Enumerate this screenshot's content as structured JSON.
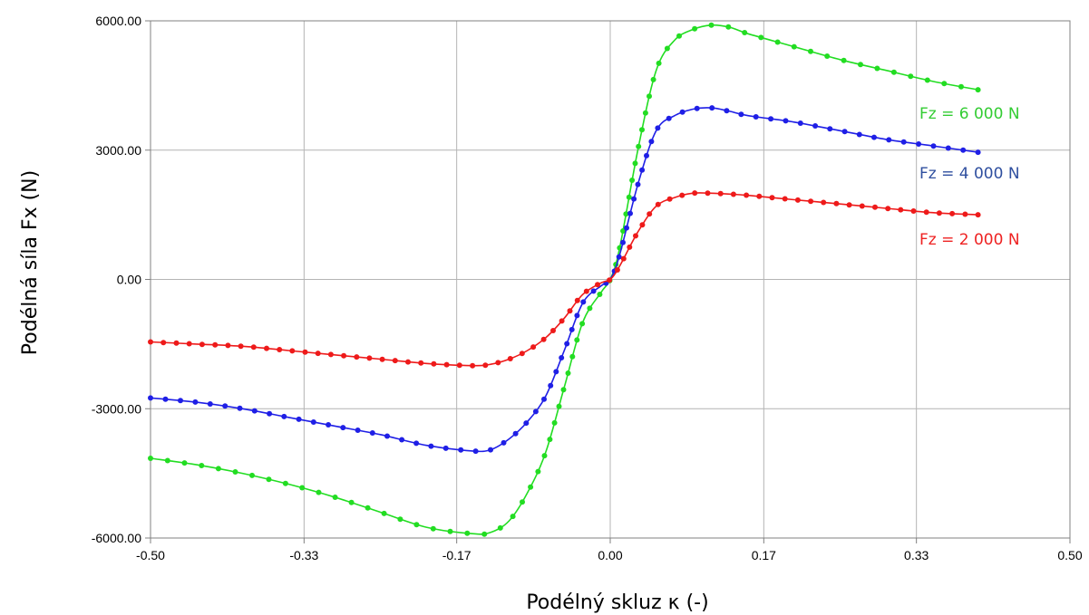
{
  "chart_data": {
    "type": "line",
    "xlabel": "Podélný skluz κ (-)",
    "ylabel": "Podélná síla Fx (N)",
    "xlim": [
      -0.5,
      0.5
    ],
    "ylim": [
      -6000,
      6000
    ],
    "x_ticks": [
      -0.5,
      -0.333,
      -0.167,
      0.0,
      0.167,
      0.333,
      0.5
    ],
    "x_tick_labels": [
      "-0.50",
      "-0.33",
      "-0.17",
      "0.00",
      "0.17",
      "0.33",
      "0.50"
    ],
    "y_ticks": [
      6000,
      3000,
      0,
      -3000,
      -6000
    ],
    "y_tick_labels": [
      "6000.00",
      "3000.00",
      "0.00",
      "-3000.00",
      "-6000.00"
    ],
    "grid": true,
    "legend": "none",
    "series": [
      {
        "name": "Fz = 6 000 N",
        "color": "#22dd22",
        "label_color": "#33cc33",
        "x": [
          -0.5,
          -0.45,
          -0.4,
          -0.35,
          -0.3,
          -0.25,
          -0.2,
          -0.15,
          -0.13,
          -0.11,
          -0.09,
          -0.07,
          -0.05,
          -0.03,
          -0.01,
          0.0,
          0.01,
          0.03,
          0.05,
          0.07,
          0.09,
          0.11,
          0.13,
          0.15,
          0.2,
          0.25,
          0.3,
          0.35,
          0.4
        ],
        "values": [
          -4150,
          -4300,
          -4500,
          -4750,
          -5050,
          -5400,
          -5750,
          -5900,
          -5870,
          -5600,
          -4950,
          -4000,
          -2500,
          -1000,
          -300,
          0,
          700,
          3000,
          4850,
          5550,
          5800,
          5900,
          5850,
          5700,
          5400,
          5100,
          4850,
          4600,
          4400
        ]
      },
      {
        "name": "Fz = 4 000 N",
        "color": "#1f1fe6",
        "label_color": "#2f4f9f",
        "x": [
          -0.5,
          -0.45,
          -0.4,
          -0.35,
          -0.3,
          -0.25,
          -0.2,
          -0.15,
          -0.13,
          -0.11,
          -0.09,
          -0.07,
          -0.05,
          -0.03,
          -0.01,
          0.0,
          0.01,
          0.03,
          0.05,
          0.07,
          0.09,
          0.11,
          0.13,
          0.15,
          0.2,
          0.25,
          0.3,
          0.35,
          0.4
        ],
        "values": [
          -2750,
          -2850,
          -3000,
          -3200,
          -3400,
          -3600,
          -3850,
          -3980,
          -3950,
          -3700,
          -3300,
          -2700,
          -1650,
          -550,
          -150,
          0,
          550,
          2200,
          3450,
          3800,
          3950,
          3980,
          3900,
          3800,
          3650,
          3450,
          3250,
          3100,
          2950
        ]
      },
      {
        "name": "Fz = 2 000 N",
        "color": "#ee1a1a",
        "label_color": "#ee2222",
        "x": [
          -0.5,
          -0.45,
          -0.4,
          -0.35,
          -0.3,
          -0.25,
          -0.2,
          -0.15,
          -0.13,
          -0.11,
          -0.09,
          -0.07,
          -0.05,
          -0.03,
          -0.01,
          0.0,
          0.01,
          0.03,
          0.05,
          0.07,
          0.09,
          0.11,
          0.13,
          0.15,
          0.2,
          0.25,
          0.3,
          0.35,
          0.4
        ],
        "values": [
          -1450,
          -1500,
          -1550,
          -1650,
          -1750,
          -1850,
          -1950,
          -2000,
          -1970,
          -1850,
          -1650,
          -1350,
          -900,
          -350,
          -80,
          0,
          300,
          1100,
          1700,
          1900,
          2000,
          2000,
          1980,
          1950,
          1850,
          1750,
          1650,
          1550,
          1500
        ]
      }
    ]
  }
}
